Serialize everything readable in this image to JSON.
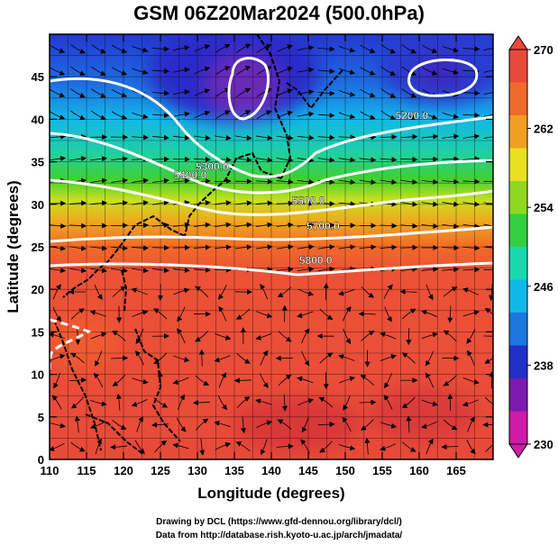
{
  "title": "GSM 06Z20Mar2024 (500.0hPa)",
  "xaxis": {
    "label": "Longitude (degrees)",
    "range": [
      110,
      170
    ],
    "ticks": [
      110,
      115,
      120,
      125,
      130,
      135,
      140,
      145,
      150,
      155,
      160,
      165
    ]
  },
  "yaxis": {
    "label": "Latitude  (degrees)",
    "range": [
      0,
      50
    ],
    "ticks": [
      0,
      5,
      10,
      15,
      20,
      25,
      30,
      35,
      40,
      45
    ]
  },
  "colorbar": {
    "range": [
      230,
      270
    ],
    "labels": [
      230,
      238,
      246,
      254,
      262,
      270
    ],
    "colors": [
      "#d01aa8",
      "#7a1ab0",
      "#2030c8",
      "#1a78e0",
      "#10b8e8",
      "#18d8b0",
      "#30d040",
      "#90d820",
      "#e8e020",
      "#f0a020",
      "#f06a2a",
      "#e84a3a"
    ]
  },
  "contour_labels": [
    {
      "text": "5200.0",
      "lon": 159,
      "lat": 40
    },
    {
      "text": "5300.0",
      "lon": 132,
      "lat": 34
    },
    {
      "text": "5400.0",
      "lon": 129,
      "lat": 33
    },
    {
      "text": "5500.0",
      "lon": 145,
      "lat": 30
    },
    {
      "text": "5700.0",
      "lon": 147,
      "lat": 27
    },
    {
      "text": "5800.0",
      "lon": 146,
      "lat": 23
    }
  ],
  "credits": {
    "line1": "Drawing by DCL (https://www.gfd-dennou.org/library/dcl/)",
    "line2": "Data from http://database.rish.kyoto-u.ac.jp/arch/jmadata/"
  }
}
